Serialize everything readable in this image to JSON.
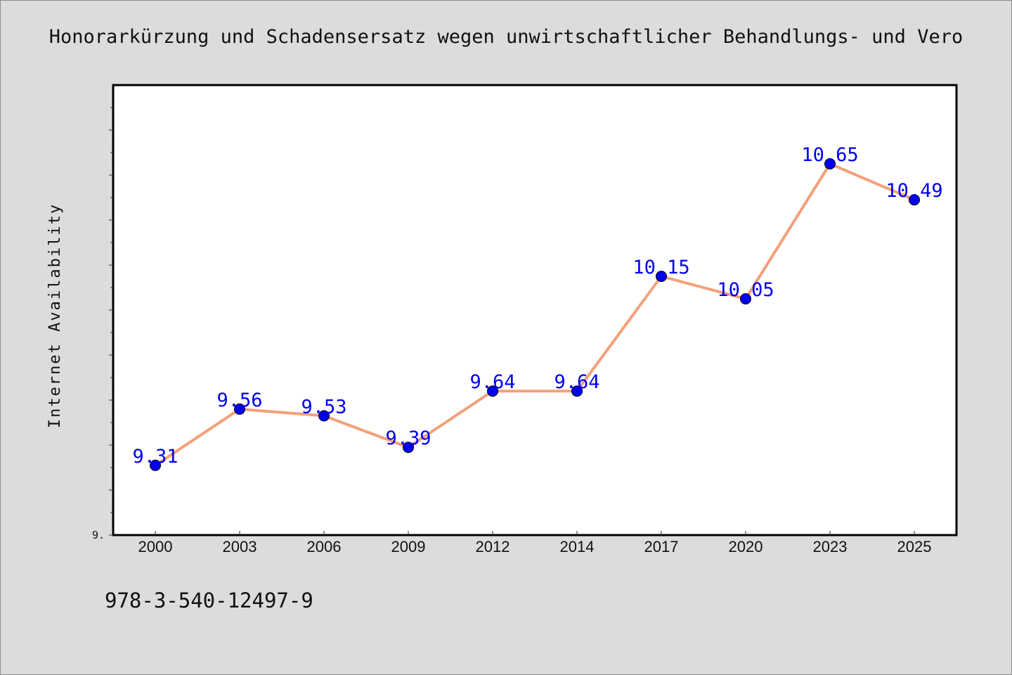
{
  "chart_data": {
    "type": "line",
    "title": "Honorarkürzung und Schadensersatz wegen unwirtschaftlicher Behandlungs- und Vero",
    "xlabel": "",
    "ylabel": "Internet Availability",
    "categories": [
      "2000",
      "2003",
      "2006",
      "2009",
      "2012",
      "2014",
      "2017",
      "2020",
      "2023",
      "2025"
    ],
    "series": [
      {
        "values": [
          9.31,
          9.56,
          9.53,
          9.39,
          9.64,
          9.64,
          10.15,
          10.05,
          10.65,
          10.49
        ],
        "labels": [
          "9.31",
          "9.56",
          "9.53",
          "9.39",
          "9.64",
          "9.64",
          "10.15",
          "10.05",
          "10.65",
          "10.49"
        ],
        "line_color": "#f4a07a",
        "marker_color": "#0000ee",
        "label_color": "#0000ee"
      }
    ],
    "ylim": [
      9.0,
      11.0
    ],
    "y_tick_label": "9.",
    "grid": false,
    "legend": "none"
  },
  "footer": {
    "code": "978-3-540-12497-9"
  }
}
